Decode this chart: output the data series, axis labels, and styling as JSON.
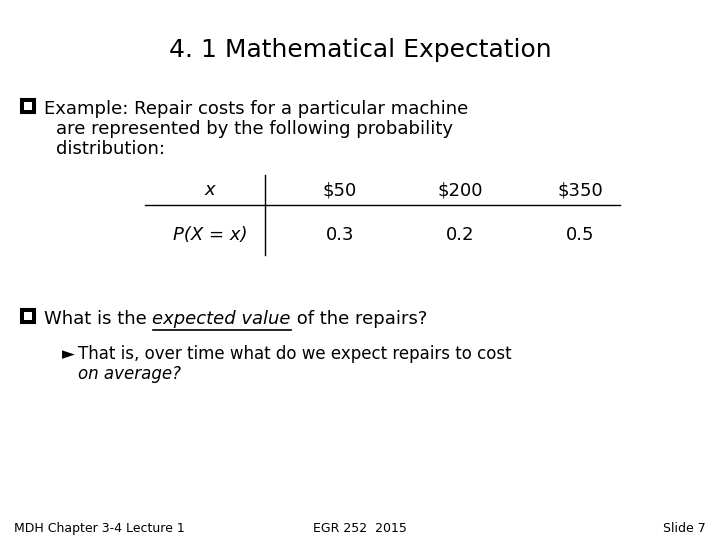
{
  "title": "4. 1 Mathematical Expectation",
  "background_color": "#ffffff",
  "text_color": "#000000",
  "example_line1": "Example: Repair costs for a particular machine",
  "example_line2": "are represented by the following probability",
  "example_line3": "distribution:",
  "table_col_header": [
    "x",
    "$50",
    "$200",
    "$350"
  ],
  "table_row_label": "P(X = x)",
  "table_row_values": [
    "0.3",
    "0.2",
    "0.5"
  ],
  "what_pre": "What is the ",
  "what_italic": "expected value",
  "what_post": " of the repairs?",
  "arrow_text": "That is, over time what do we expect repairs to cost",
  "arrow_text2": "on average?",
  "footer_left": "MDH Chapter 3-4 Lecture 1",
  "footer_center": "EGR 252  2015",
  "footer_right": "Slide 7",
  "title_fontsize": 18,
  "body_fontsize": 13,
  "table_fontsize": 13,
  "footer_fontsize": 9
}
